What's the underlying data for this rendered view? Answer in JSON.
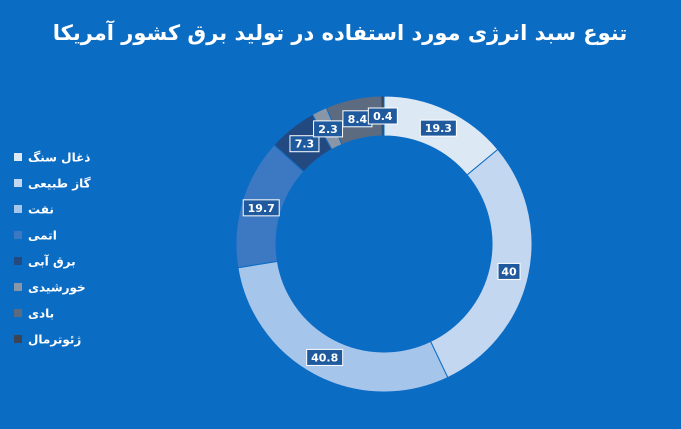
{
  "chart_data": {
    "type": "donut",
    "title": "تنوع سبد انرژی مورد استفاده در تولید برق کشور آمریکا",
    "categories": [
      "ذغال سنگ",
      "گاز طبیعی",
      "نفت",
      "اتمی",
      "برق آبی",
      "خورشیدی",
      "بادی",
      "ژئوترمال"
    ],
    "values": [
      19.3,
      40,
      40.8,
      19.7,
      7.3,
      2.3,
      8.4,
      0.4
    ],
    "colors": [
      "#dde8f5",
      "#c3d8f0",
      "#a6c5ea",
      "#3d78c2",
      "#234a80",
      "#8996a8",
      "#5c6b80",
      "#3a4452"
    ]
  }
}
